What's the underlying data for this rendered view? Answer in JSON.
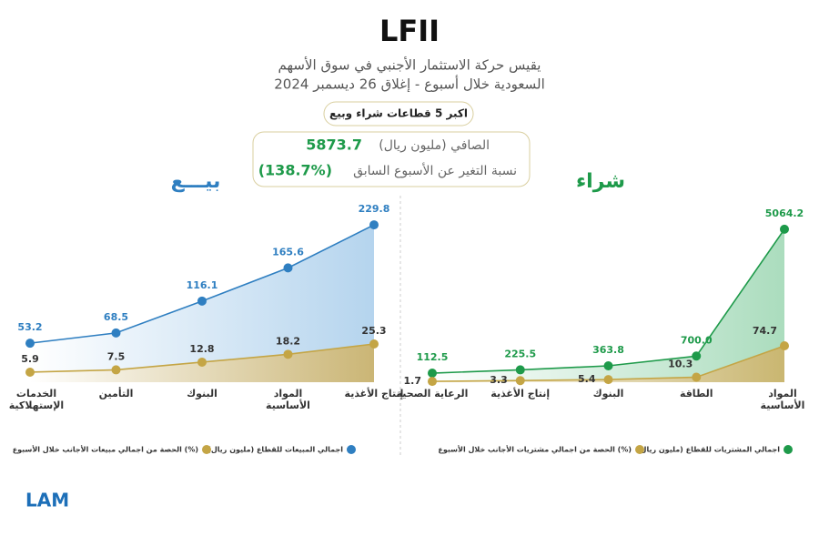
{
  "header": {
    "title": "LFII",
    "subtitle_lines": [
      "يقيس حركة الاستثمار الأجنبي في سوق الأسهم",
      "السعودية خلال أسبوع - إغلاق 26 ديسمبر 2024"
    ],
    "badge": "اكبر 5 قطاعات شراء وبيع"
  },
  "summary": {
    "net_label": "الصافي (مليون ريال)",
    "net_value": 5873.7,
    "change_label": "نسبة التغير عن الأسبوع السابق",
    "change_value": "(138.7%)"
  },
  "chart_data": [
    {
      "type": "line",
      "title": "شراء",
      "title_color": "#1e9a4a",
      "categories": [
        "الرعاية الصحية",
        "إنتاج الأغذية",
        "البنوك",
        "الطاقة",
        "المواد الأساسية"
      ],
      "series": [
        {
          "name": "اجمالي المشتريات للقطاع (مليون ريال)",
          "color": "#1e9a4a",
          "fill": "#9fd8b4",
          "values": [
            112.5,
            225.5,
            363.8,
            700.0,
            5064.2
          ],
          "value_labels": [
            "112.5",
            "225.5",
            "363.8",
            "700.0",
            "5064.2"
          ]
        },
        {
          "name": "الحصة من اجمالي مشتريات الأجانب خلال الأسبوع (%)",
          "color": "#c4a545",
          "fill": "#d8c280",
          "axis": "y2",
          "values": [
            1.7,
            3.3,
            5.4,
            10.3,
            74.7
          ]
        }
      ],
      "ylim": [
        -200,
        5750
      ],
      "y2lim": [
        0,
        355
      ]
    },
    {
      "type": "line",
      "title": "بيـــع",
      "title_color": "#2f7fc1",
      "categories": [
        "الخدمات الإستهلاكية",
        "التأمين",
        "البنوك",
        "المواد الأساسية",
        "إنتاج الأغذية"
      ],
      "series": [
        {
          "name": "اجمالي المبيعات للقطاع (مليون ريال)",
          "color": "#2f7fc1",
          "fill": "#a9cdea",
          "values": [
            53.2,
            68.5,
            116.1,
            165.6,
            229.8
          ]
        },
        {
          "name": "الحصة من اجمالي مبيعات الأجانب خلال الأسبوع (%)",
          "color": "#c4a545",
          "fill": "#d8c280",
          "axis": "y2",
          "values": [
            5.9,
            7.5,
            12.8,
            18.2,
            25.3
          ]
        }
      ],
      "ylim": [
        -5,
        253
      ],
      "y2lim": [
        -1,
        118
      ]
    }
  ],
  "logo": "LAM"
}
